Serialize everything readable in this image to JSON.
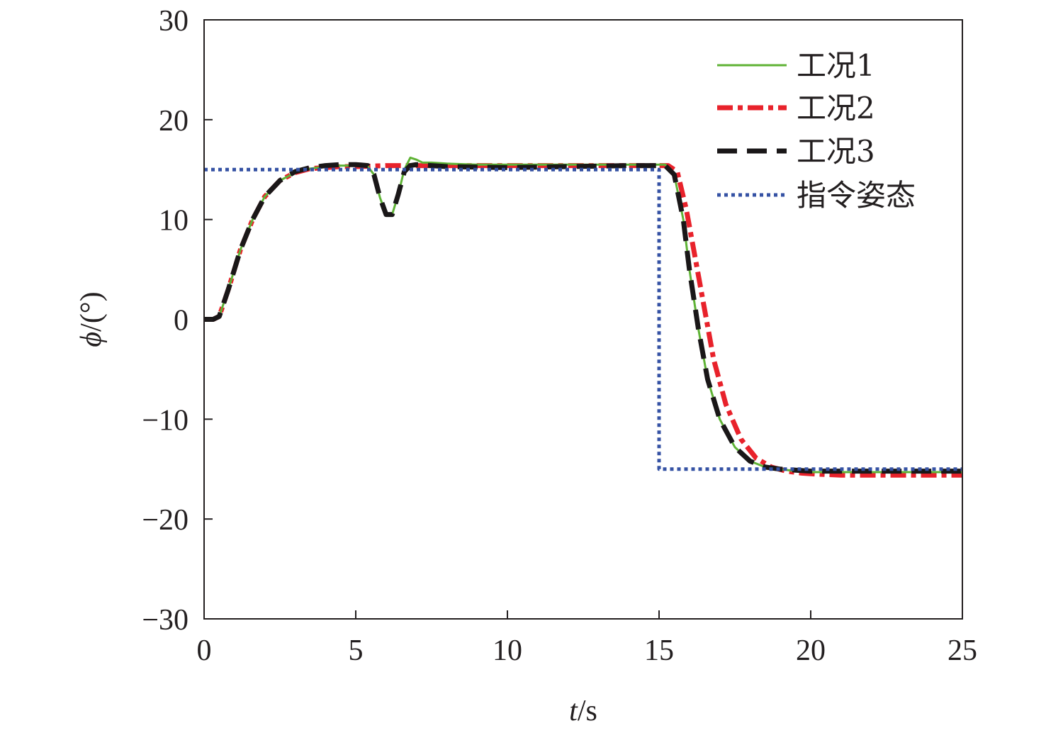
{
  "chart_data": {
    "type": "line",
    "title": "",
    "xlabel_var": "t",
    "xlabel_unit": "/s",
    "ylabel_var": "ϕ",
    "ylabel_unit": "/(°)",
    "xlim": [
      0,
      25
    ],
    "ylim": [
      -30,
      30
    ],
    "x_ticks": [
      0,
      5,
      10,
      15,
      20,
      25
    ],
    "y_ticks": [
      30,
      20,
      10,
      0,
      -10,
      -20,
      -30
    ],
    "y_tick_labels": [
      "30",
      "20",
      "10",
      "0",
      "−10",
      "−20",
      "−30"
    ],
    "x_tick_labels": [
      "0",
      "5",
      "10",
      "15",
      "20",
      "25"
    ],
    "grid": false,
    "legend_position": "top-right",
    "series": [
      {
        "name": "工况1",
        "color": "#5fb336",
        "style": "solid",
        "x": [
          0,
          0.3,
          0.5,
          0.8,
          1.2,
          1.6,
          2.0,
          2.5,
          3.0,
          3.5,
          4.0,
          4.5,
          5.0,
          5.4,
          5.6,
          5.8,
          6.0,
          6.2,
          6.4,
          6.6,
          6.8,
          7.0,
          7.2,
          7.5,
          8.0,
          9.0,
          10.0,
          12.0,
          14.0,
          15.2,
          15.5,
          15.8,
          16.0,
          16.3,
          16.6,
          17.0,
          17.5,
          18.0,
          18.5,
          19.0,
          19.5,
          20.0,
          21.0,
          22.0,
          25.0
        ],
        "y": [
          0,
          0,
          0.3,
          3,
          7,
          10,
          12.3,
          13.9,
          14.7,
          15.1,
          15.3,
          15.4,
          15.4,
          15.3,
          14.5,
          12.2,
          10.5,
          10.5,
          12.5,
          15.0,
          16.2,
          16.0,
          15.7,
          15.7,
          15.6,
          15.5,
          15.5,
          15.5,
          15.5,
          15.5,
          14.5,
          10,
          5,
          -1,
          -6,
          -10,
          -12.8,
          -14.2,
          -14.8,
          -15.0,
          -15.2,
          -15.3,
          -15.3,
          -15.3,
          -15.3
        ]
      },
      {
        "name": "工况2",
        "color": "#e8222b",
        "style": "dash-dot",
        "x": [
          0,
          0.3,
          0.5,
          0.8,
          1.2,
          1.6,
          2.0,
          2.5,
          3.0,
          3.5,
          4.0,
          4.5,
          5.0,
          6.0,
          8.0,
          10.0,
          12.0,
          14.0,
          15.3,
          15.6,
          15.9,
          16.2,
          16.5,
          16.8,
          17.2,
          17.7,
          18.2,
          18.7,
          19.2,
          19.7,
          20.2,
          21.0,
          22.0,
          25.0
        ],
        "y": [
          0,
          0,
          0.3,
          3,
          7,
          10,
          12.3,
          13.9,
          14.7,
          15.1,
          15.2,
          15.3,
          15.3,
          15.4,
          15.4,
          15.4,
          15.4,
          15.4,
          15.4,
          14.8,
          11,
          6,
          1,
          -4,
          -8.5,
          -12,
          -13.9,
          -14.8,
          -15.2,
          -15.4,
          -15.5,
          -15.6,
          -15.6,
          -15.6
        ]
      },
      {
        "name": "工况3",
        "color": "#1a1718",
        "style": "dashed",
        "x": [
          0,
          0.3,
          0.5,
          0.8,
          1.2,
          1.6,
          2.0,
          2.5,
          3.0,
          3.5,
          4.0,
          4.5,
          5.0,
          5.4,
          5.6,
          5.8,
          6.0,
          6.2,
          6.4,
          6.6,
          6.8,
          7.0,
          7.5,
          8.0,
          10.0,
          12.0,
          14.0,
          15.2,
          15.5,
          15.8,
          16.0,
          16.3,
          16.6,
          17.0,
          17.5,
          18.0,
          18.5,
          19.0,
          19.5,
          20.0,
          21.0,
          22.0,
          25.0
        ],
        "y": [
          0,
          0,
          0.3,
          3,
          7,
          10,
          12.3,
          13.9,
          14.8,
          15.2,
          15.4,
          15.5,
          15.5,
          15.4,
          14.5,
          12.2,
          10.5,
          10.5,
          12.5,
          14.8,
          15.4,
          15.5,
          15.4,
          15.3,
          15.2,
          15.3,
          15.4,
          15.4,
          14.5,
          10,
          5,
          -1,
          -6,
          -10,
          -12.8,
          -14.2,
          -14.8,
          -15.0,
          -15.1,
          -15.2,
          -15.2,
          -15.2,
          -15.2
        ]
      },
      {
        "name": "指令姿态",
        "color": "#3552a4",
        "style": "dotted",
        "x": [
          0,
          15.0,
          15.0,
          25.0
        ],
        "y": [
          15,
          15,
          -15,
          -15
        ]
      }
    ]
  }
}
